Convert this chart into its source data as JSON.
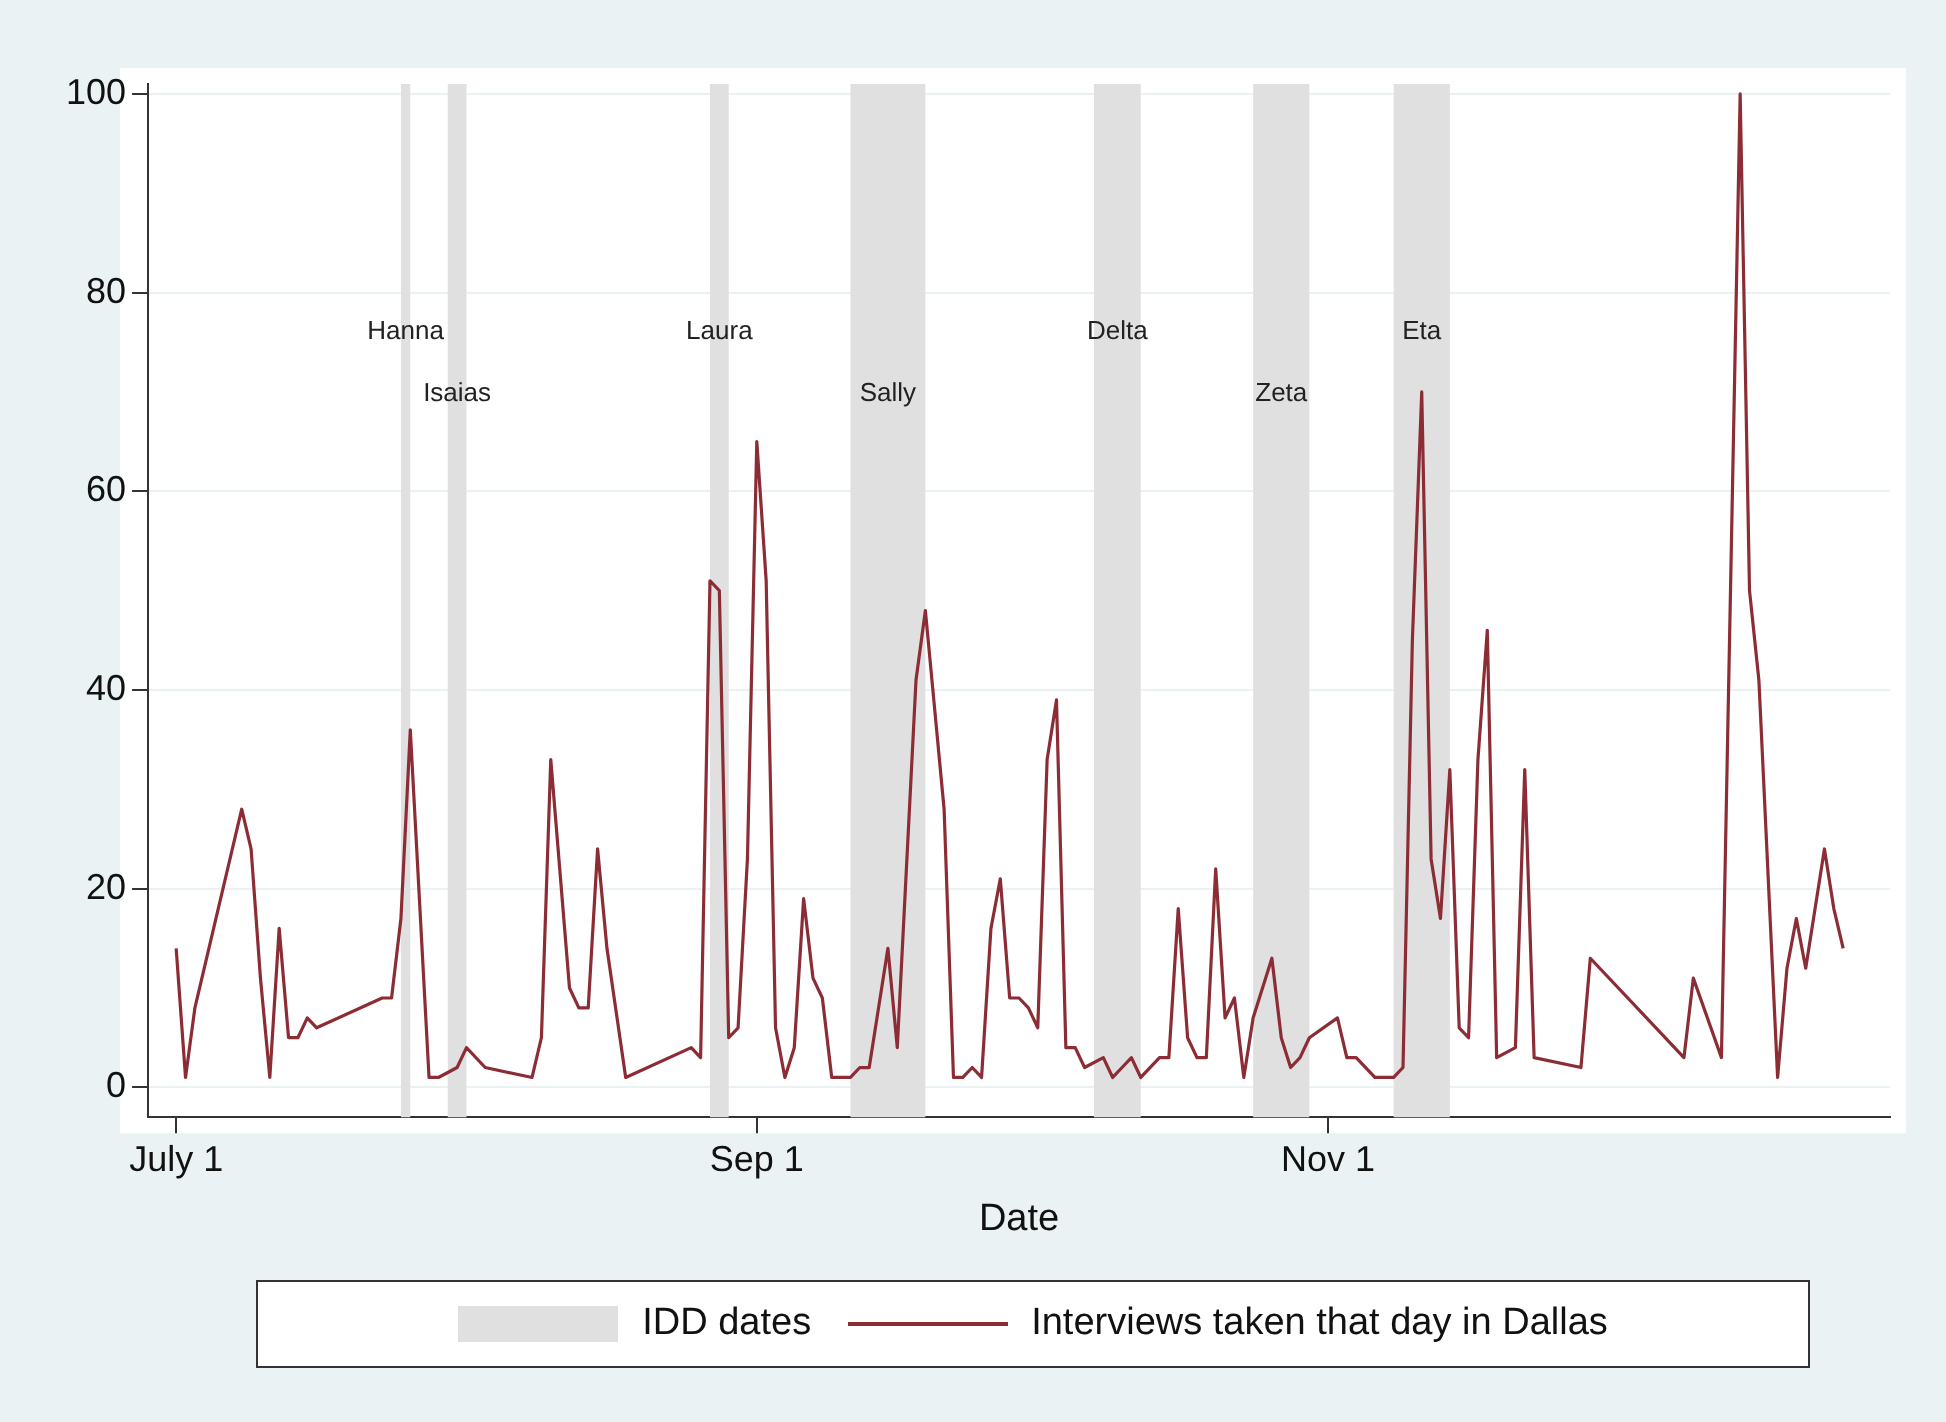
{
  "chart_data": {
    "type": "line",
    "xlabel": "Date",
    "x": [
      "--07-01",
      "--07-02",
      "--07-03",
      "--07-08",
      "--07-09",
      "--07-10",
      "--07-11",
      "--07-12",
      "--07-13",
      "--07-14",
      "--07-15",
      "--07-16",
      "--07-23",
      "--07-24",
      "--07-25",
      "--07-26",
      "--07-28",
      "--07-29",
      "--07-31",
      "--08-01",
      "--08-03",
      "--08-08",
      "--08-09",
      "--08-10",
      "--08-12",
      "--08-13",
      "--08-14",
      "--08-15",
      "--08-16",
      "--08-18",
      "--08-25",
      "--08-26",
      "--08-27",
      "--08-28",
      "--08-29",
      "--08-30",
      "--08-31",
      "--09-01",
      "--09-02",
      "--09-03",
      "--09-04",
      "--09-05",
      "--09-06",
      "--09-07",
      "--09-08",
      "--09-09",
      "--09-11",
      "--09-12",
      "--09-13",
      "--09-15",
      "--09-16",
      "--09-18",
      "--09-19",
      "--09-21",
      "--09-22",
      "--09-23",
      "--09-24",
      "--09-25",
      "--09-26",
      "--09-27",
      "--09-28",
      "--09-29",
      "--09-30",
      "--10-01",
      "--10-02",
      "--10-03",
      "--10-04",
      "--10-05",
      "--10-06",
      "--10-08",
      "--10-09",
      "--10-10",
      "--10-11",
      "--10-12",
      "--10-14",
      "--10-15",
      "--10-16",
      "--10-17",
      "--10-18",
      "--10-19",
      "--10-20",
      "--10-21",
      "--10-22",
      "--10-23",
      "--10-24",
      "--10-25",
      "--10-26",
      "--10-27",
      "--10-28",
      "--10-29",
      "--10-30",
      "--11-02",
      "--11-03",
      "--11-04",
      "--11-06",
      "--11-08",
      "--11-09",
      "--11-10",
      "--11-11",
      "--11-12",
      "--11-13",
      "--11-14",
      "--11-15",
      "--11-16",
      "--11-17",
      "--11-18",
      "--11-19",
      "--11-21",
      "--11-22",
      "--11-23",
      "--11-28",
      "--11-29",
      "--12-09",
      "--12-10",
      "--12-13",
      "--12-15",
      "--12-16",
      "--12-17",
      "--12-19",
      "--12-20",
      "--12-21",
      "--12-22",
      "--12-24",
      "--12-25",
      "--12-26"
    ],
    "series": [
      {
        "name": "Interviews taken that day in Dallas",
        "color": "#8c2d36",
        "values": [
          14,
          1,
          8,
          28,
          24,
          11,
          1,
          16,
          5,
          5,
          7,
          6,
          9,
          9,
          17,
          36,
          1,
          1,
          2,
          4,
          2,
          1,
          5,
          33,
          10,
          8,
          8,
          24,
          14,
          1,
          4,
          3,
          51,
          50,
          5,
          6,
          23,
          65,
          51,
          6,
          1,
          4,
          19,
          11,
          9,
          1,
          1,
          2,
          2,
          14,
          4,
          41,
          48,
          28,
          1,
          1,
          2,
          1,
          16,
          21,
          9,
          9,
          8,
          6,
          33,
          39,
          4,
          4,
          2,
          3,
          1,
          2,
          3,
          1,
          3,
          3,
          18,
          5,
          3,
          3,
          22,
          7,
          9,
          1,
          7,
          10,
          13,
          5,
          2,
          3,
          5,
          7,
          3,
          3,
          1,
          1,
          2,
          45,
          70,
          23,
          17,
          32,
          6,
          5,
          33,
          46,
          3,
          4,
          32,
          3,
          2,
          13,
          3,
          11,
          3,
          100,
          50,
          41,
          1,
          12,
          17,
          12,
          24,
          18,
          14
        ]
      }
    ],
    "bands": [
      {
        "axis": "x",
        "from": "--07-25",
        "to": "--07-26",
        "label": "Hanna",
        "color": "#e0e0e0"
      },
      {
        "axis": "x",
        "from": "--07-30",
        "to": "--08-01",
        "label": "Isaias",
        "color": "#e0e0e0"
      },
      {
        "axis": "x",
        "from": "--08-27",
        "to": "--08-29",
        "label": "Laura",
        "color": "#e0e0e0"
      },
      {
        "axis": "x",
        "from": "--09-11",
        "to": "--09-19",
        "label": "Sally",
        "color": "#e0e0e0"
      },
      {
        "axis": "x",
        "from": "--10-07",
        "to": "--10-12",
        "label": "Delta",
        "color": "#e0e0e0"
      },
      {
        "axis": "x",
        "from": "--10-24",
        "to": "--10-30",
        "label": "Zeta",
        "color": "#e0e0e0"
      },
      {
        "axis": "x",
        "from": "--11-08",
        "to": "--11-14",
        "label": "Eta",
        "color": "#e0e0e0"
      }
    ],
    "annotations": [
      "IDD dates"
    ],
    "xlim": [
      "--06-28",
      "--12-31"
    ],
    "xticks": [
      {
        "value": "--07-01",
        "label": "July 1"
      },
      {
        "value": "--09-01",
        "label": "Sep 1"
      },
      {
        "value": "--11-01",
        "label": "Nov 1"
      }
    ],
    "ylim": [
      -3,
      101
    ],
    "yticks": [
      0,
      20,
      40,
      60,
      80,
      100
    ],
    "grid": "y",
    "legend": "bottom"
  }
}
